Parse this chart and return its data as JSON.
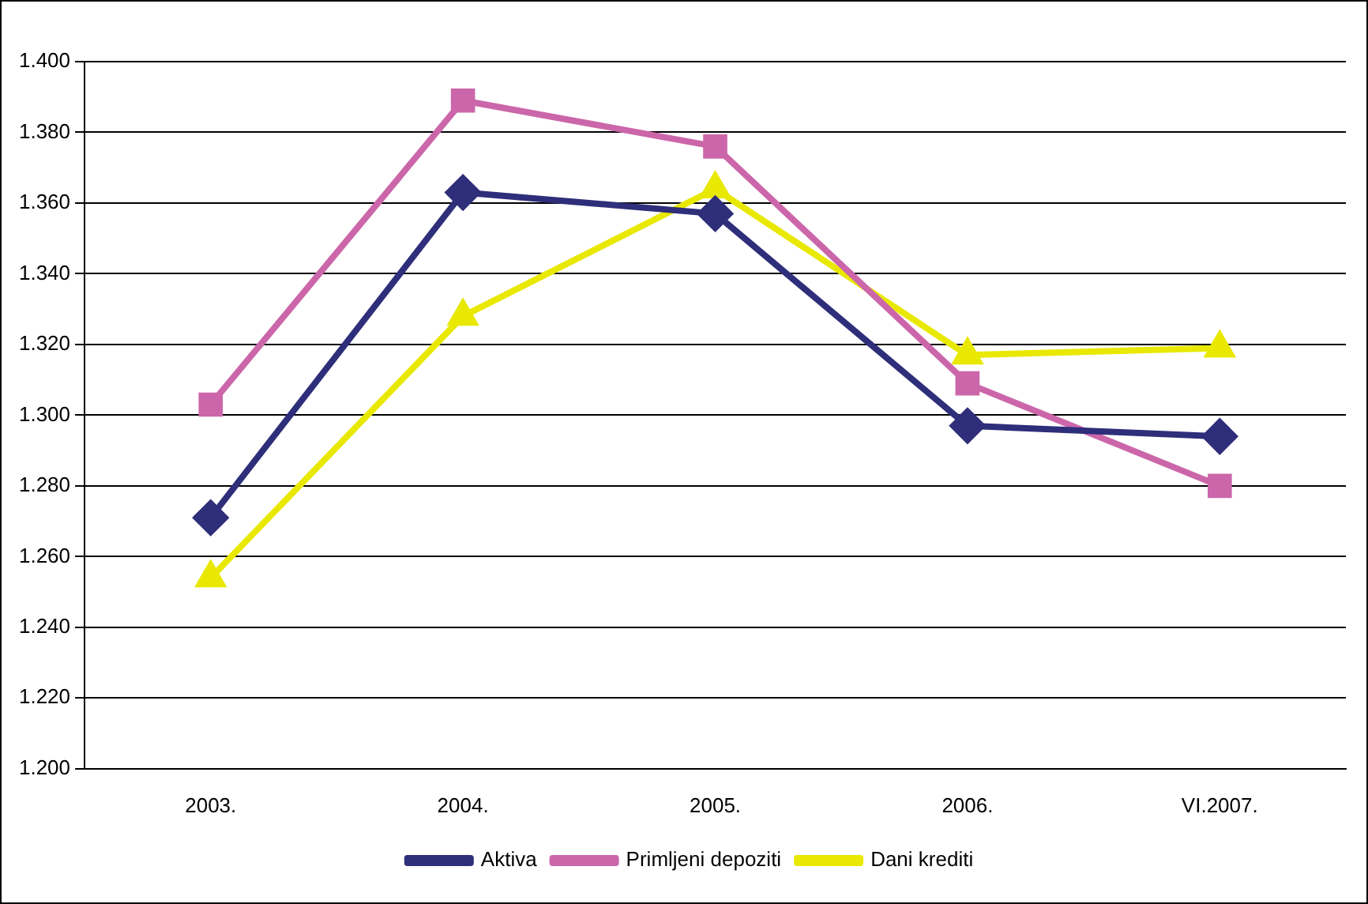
{
  "chart_data": {
    "type": "line",
    "categories": [
      "2003.",
      "2004.",
      "2005.",
      "2006.",
      "VI.2007."
    ],
    "series": [
      {
        "name": "Aktiva",
        "color": "#2e2e7a",
        "marker": "diamond",
        "values": [
          1.271,
          1.363,
          1.357,
          1.297,
          1.294
        ]
      },
      {
        "name": "Primljeni depoziti",
        "color": "#cc66aa",
        "marker": "square",
        "values": [
          1.303,
          1.389,
          1.376,
          1.309,
          1.28
        ]
      },
      {
        "name": "Dani krediti",
        "color": "#e8e800",
        "marker": "triangle",
        "values": [
          1.254,
          1.328,
          1.364,
          1.317,
          1.319
        ]
      }
    ],
    "ylim": [
      1.2,
      1.4
    ],
    "yticks": [
      {
        "value": 1.2,
        "label": "1.200"
      },
      {
        "value": 1.22,
        "label": "1.220"
      },
      {
        "value": 1.24,
        "label": "1.240"
      },
      {
        "value": 1.26,
        "label": "1.260"
      },
      {
        "value": 1.28,
        "label": "1.280"
      },
      {
        "value": 1.3,
        "label": "1.300"
      },
      {
        "value": 1.32,
        "label": "1.320"
      },
      {
        "value": 1.34,
        "label": "1.340"
      },
      {
        "value": 1.36,
        "label": "1.360"
      },
      {
        "value": 1.38,
        "label": "1.380"
      },
      {
        "value": 1.4,
        "label": "1.400"
      }
    ],
    "grid": "y",
    "legend": "bottom",
    "line_style": "solid"
  }
}
